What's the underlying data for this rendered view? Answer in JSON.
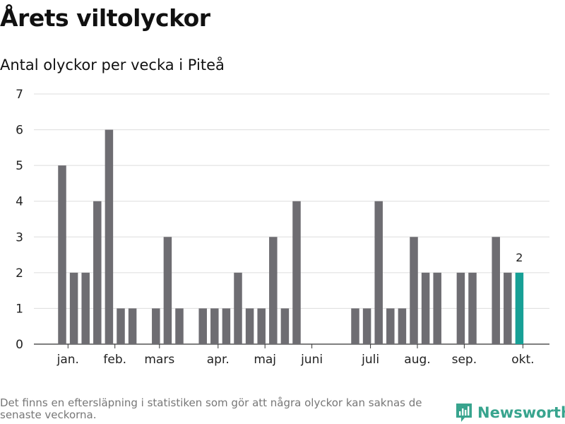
{
  "title": "Årets viltolyckor",
  "subtitle": "Antal olyckor per vecka i Piteå",
  "footnote": "Det finns en eftersläpning i statistiken som gör att några olyckor kan saknas de senaste veckorna.",
  "brand": {
    "name": "Newsworthy",
    "icon": "newsworthy-logo-icon",
    "color": "#38a48e"
  },
  "chart_data": {
    "type": "bar",
    "values": [
      5,
      2,
      2,
      4,
      6,
      1,
      1,
      0,
      1,
      3,
      1,
      0,
      1,
      1,
      1,
      2,
      1,
      1,
      3,
      1,
      4,
      0,
      0,
      0,
      0,
      1,
      1,
      4,
      1,
      1,
      3,
      2,
      2,
      0,
      2,
      2,
      0,
      3,
      2,
      2
    ],
    "month_ticks": [
      {
        "label": "jan.",
        "week": 0.5
      },
      {
        "label": "feb.",
        "week": 4.5
      },
      {
        "label": "mars",
        "week": 8.3
      },
      {
        "label": "apr.",
        "week": 13.3
      },
      {
        "label": "maj",
        "week": 17.3
      },
      {
        "label": "juni",
        "week": 21.3
      },
      {
        "label": "juli",
        "week": 26.3
      },
      {
        "label": "aug.",
        "week": 30.3
      },
      {
        "label": "sep.",
        "week": 34.3
      },
      {
        "label": "okt.",
        "week": 39.3
      }
    ],
    "ylim": [
      0,
      7
    ],
    "yticks": [
      0,
      1,
      2,
      3,
      4,
      5,
      6,
      7
    ],
    "grid": true,
    "bar_color": "#6e6d72",
    "highlight_color": "#17a096",
    "highlight_index": 39,
    "highlight_label": "2"
  }
}
